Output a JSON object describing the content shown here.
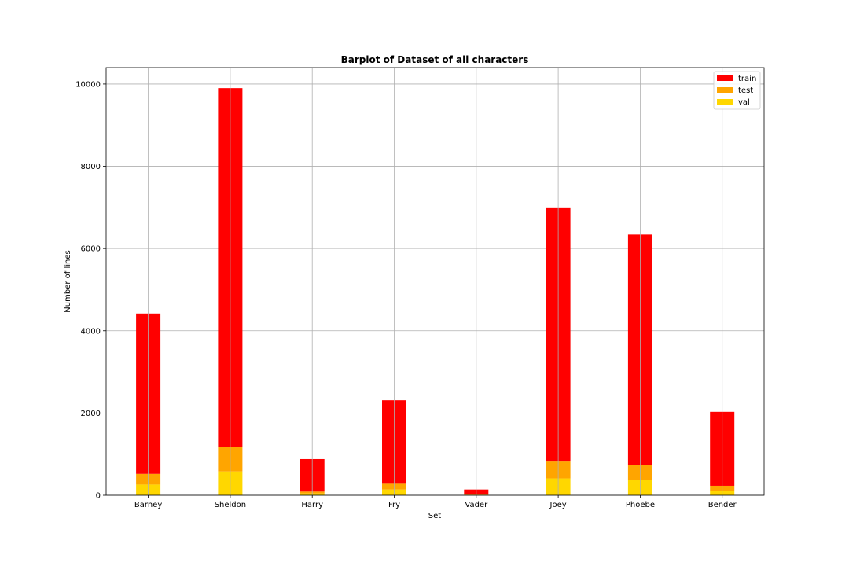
{
  "chart_data": {
    "type": "bar",
    "stacked": true,
    "title": "Barplot of Dataset of all characters",
    "xlabel": "Set",
    "ylabel": "Number of lines",
    "ylim": [
      0,
      10400
    ],
    "yticks": [
      "0",
      "2000",
      "4000",
      "6000",
      "8000",
      "10000"
    ],
    "grid": true,
    "legend_position": "top-right",
    "categories": [
      "Barney",
      "Sheldon",
      "Harry",
      "Fry",
      "Vader",
      "Joey",
      "Phoebe",
      "Bender"
    ],
    "series": [
      {
        "name": "val",
        "color": "#ffd700",
        "values": [
          260,
          580,
          45,
          140,
          8,
          410,
          370,
          110
        ]
      },
      {
        "name": "test",
        "color": "#ffa500",
        "values": [
          260,
          590,
          45,
          140,
          8,
          410,
          370,
          120
        ]
      },
      {
        "name": "train",
        "color": "#ff0000",
        "values": [
          3900,
          8730,
          790,
          2030,
          124,
          6180,
          5600,
          1800
        ]
      }
    ],
    "legend_order": [
      "train",
      "test",
      "val"
    ]
  }
}
